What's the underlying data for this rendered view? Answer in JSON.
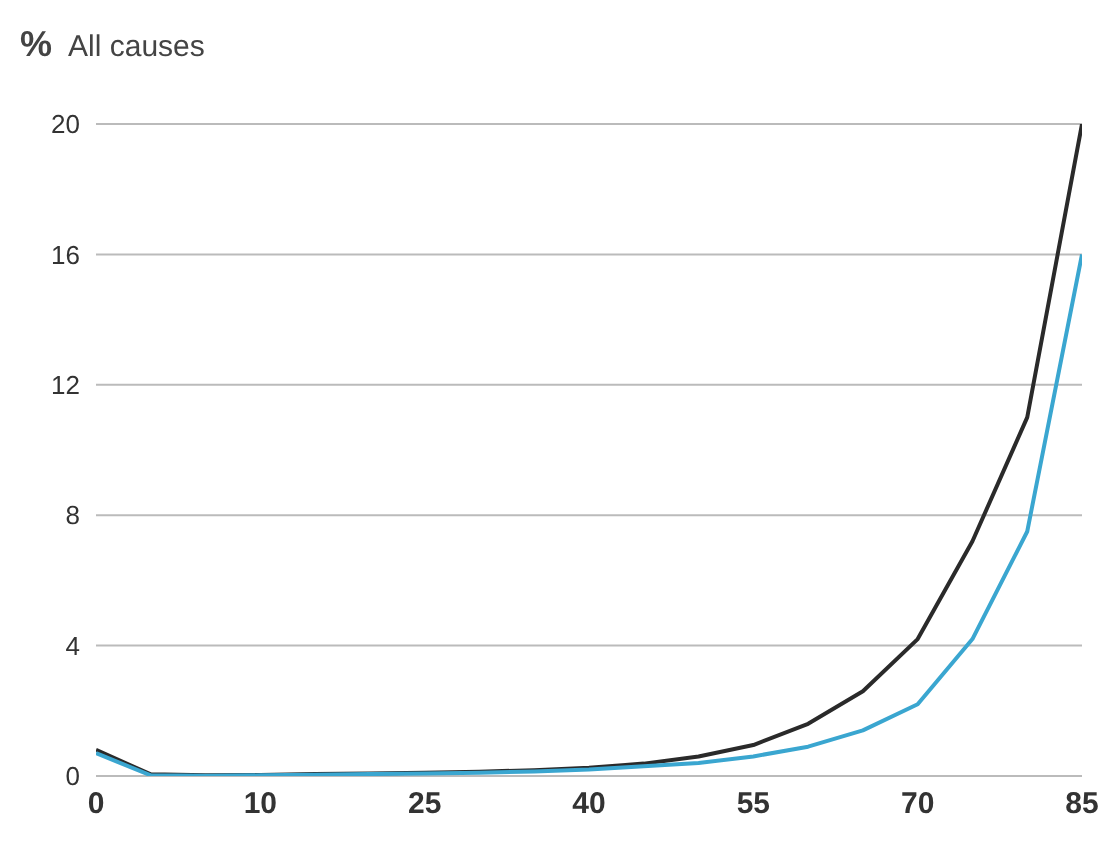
{
  "chart_data": {
    "type": "line",
    "title": "All causes",
    "ylabel": "%",
    "categories": [
      "0",
      null,
      null,
      "10",
      null,
      null,
      "25",
      null,
      null,
      "40",
      null,
      null,
      "55",
      null,
      null,
      "70",
      null,
      null,
      "85"
    ],
    "series": [
      {
        "color": "#2a2a2a",
        "values": [
          0.8,
          0.05,
          0.02,
          0.03,
          0.06,
          0.08,
          0.1,
          0.13,
          0.18,
          0.25,
          0.38,
          0.6,
          0.95,
          1.6,
          2.6,
          4.2,
          7.2,
          11,
          20
        ]
      },
      {
        "color": "#3aa6d0",
        "values": [
          0.7,
          0.02,
          0.01,
          0.02,
          0.04,
          0.06,
          0.08,
          0.1,
          0.14,
          0.2,
          0.3,
          0.4,
          0.6,
          0.9,
          1.4,
          2.2,
          4.2,
          7.5,
          16
        ]
      }
    ],
    "ylim": [
      0,
      20
    ],
    "yticks": [
      0,
      4,
      8,
      12,
      16,
      20
    ],
    "grid": "y",
    "marker": "none",
    "line_style": "solid"
  }
}
